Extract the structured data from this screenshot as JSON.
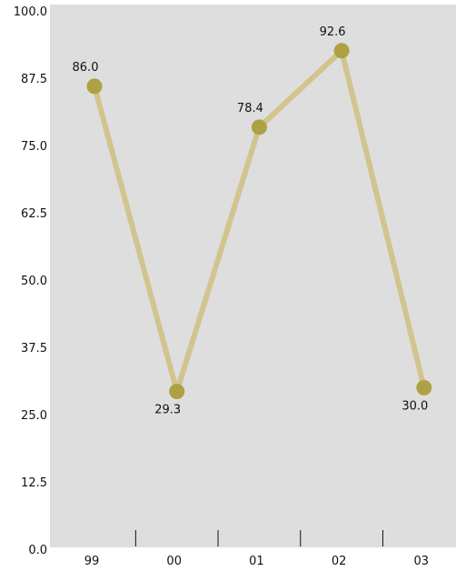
{
  "colors": {
    "plot_background": "#dedede",
    "line": "#d1c48e",
    "marker": "#aea145",
    "text": "#111111"
  },
  "chart_data": {
    "type": "line",
    "title": "",
    "xlabel": "",
    "ylabel": "",
    "categories": [
      "99",
      "00",
      "01",
      "02",
      "03"
    ],
    "values": [
      86.0,
      29.3,
      78.4,
      92.6,
      30.0
    ],
    "data_labels": [
      "86.0",
      "29.3",
      "78.4",
      "92.6",
      "30.0"
    ],
    "label_positions": [
      "above",
      "below",
      "above",
      "above",
      "below"
    ],
    "ylim": [
      0,
      100
    ],
    "y_ticks": [
      "0.0",
      "12.5",
      "25.0",
      "37.5",
      "50.0",
      "62.5",
      "75.0",
      "87.5",
      "100.0"
    ],
    "grid": false,
    "legend": "none"
  }
}
